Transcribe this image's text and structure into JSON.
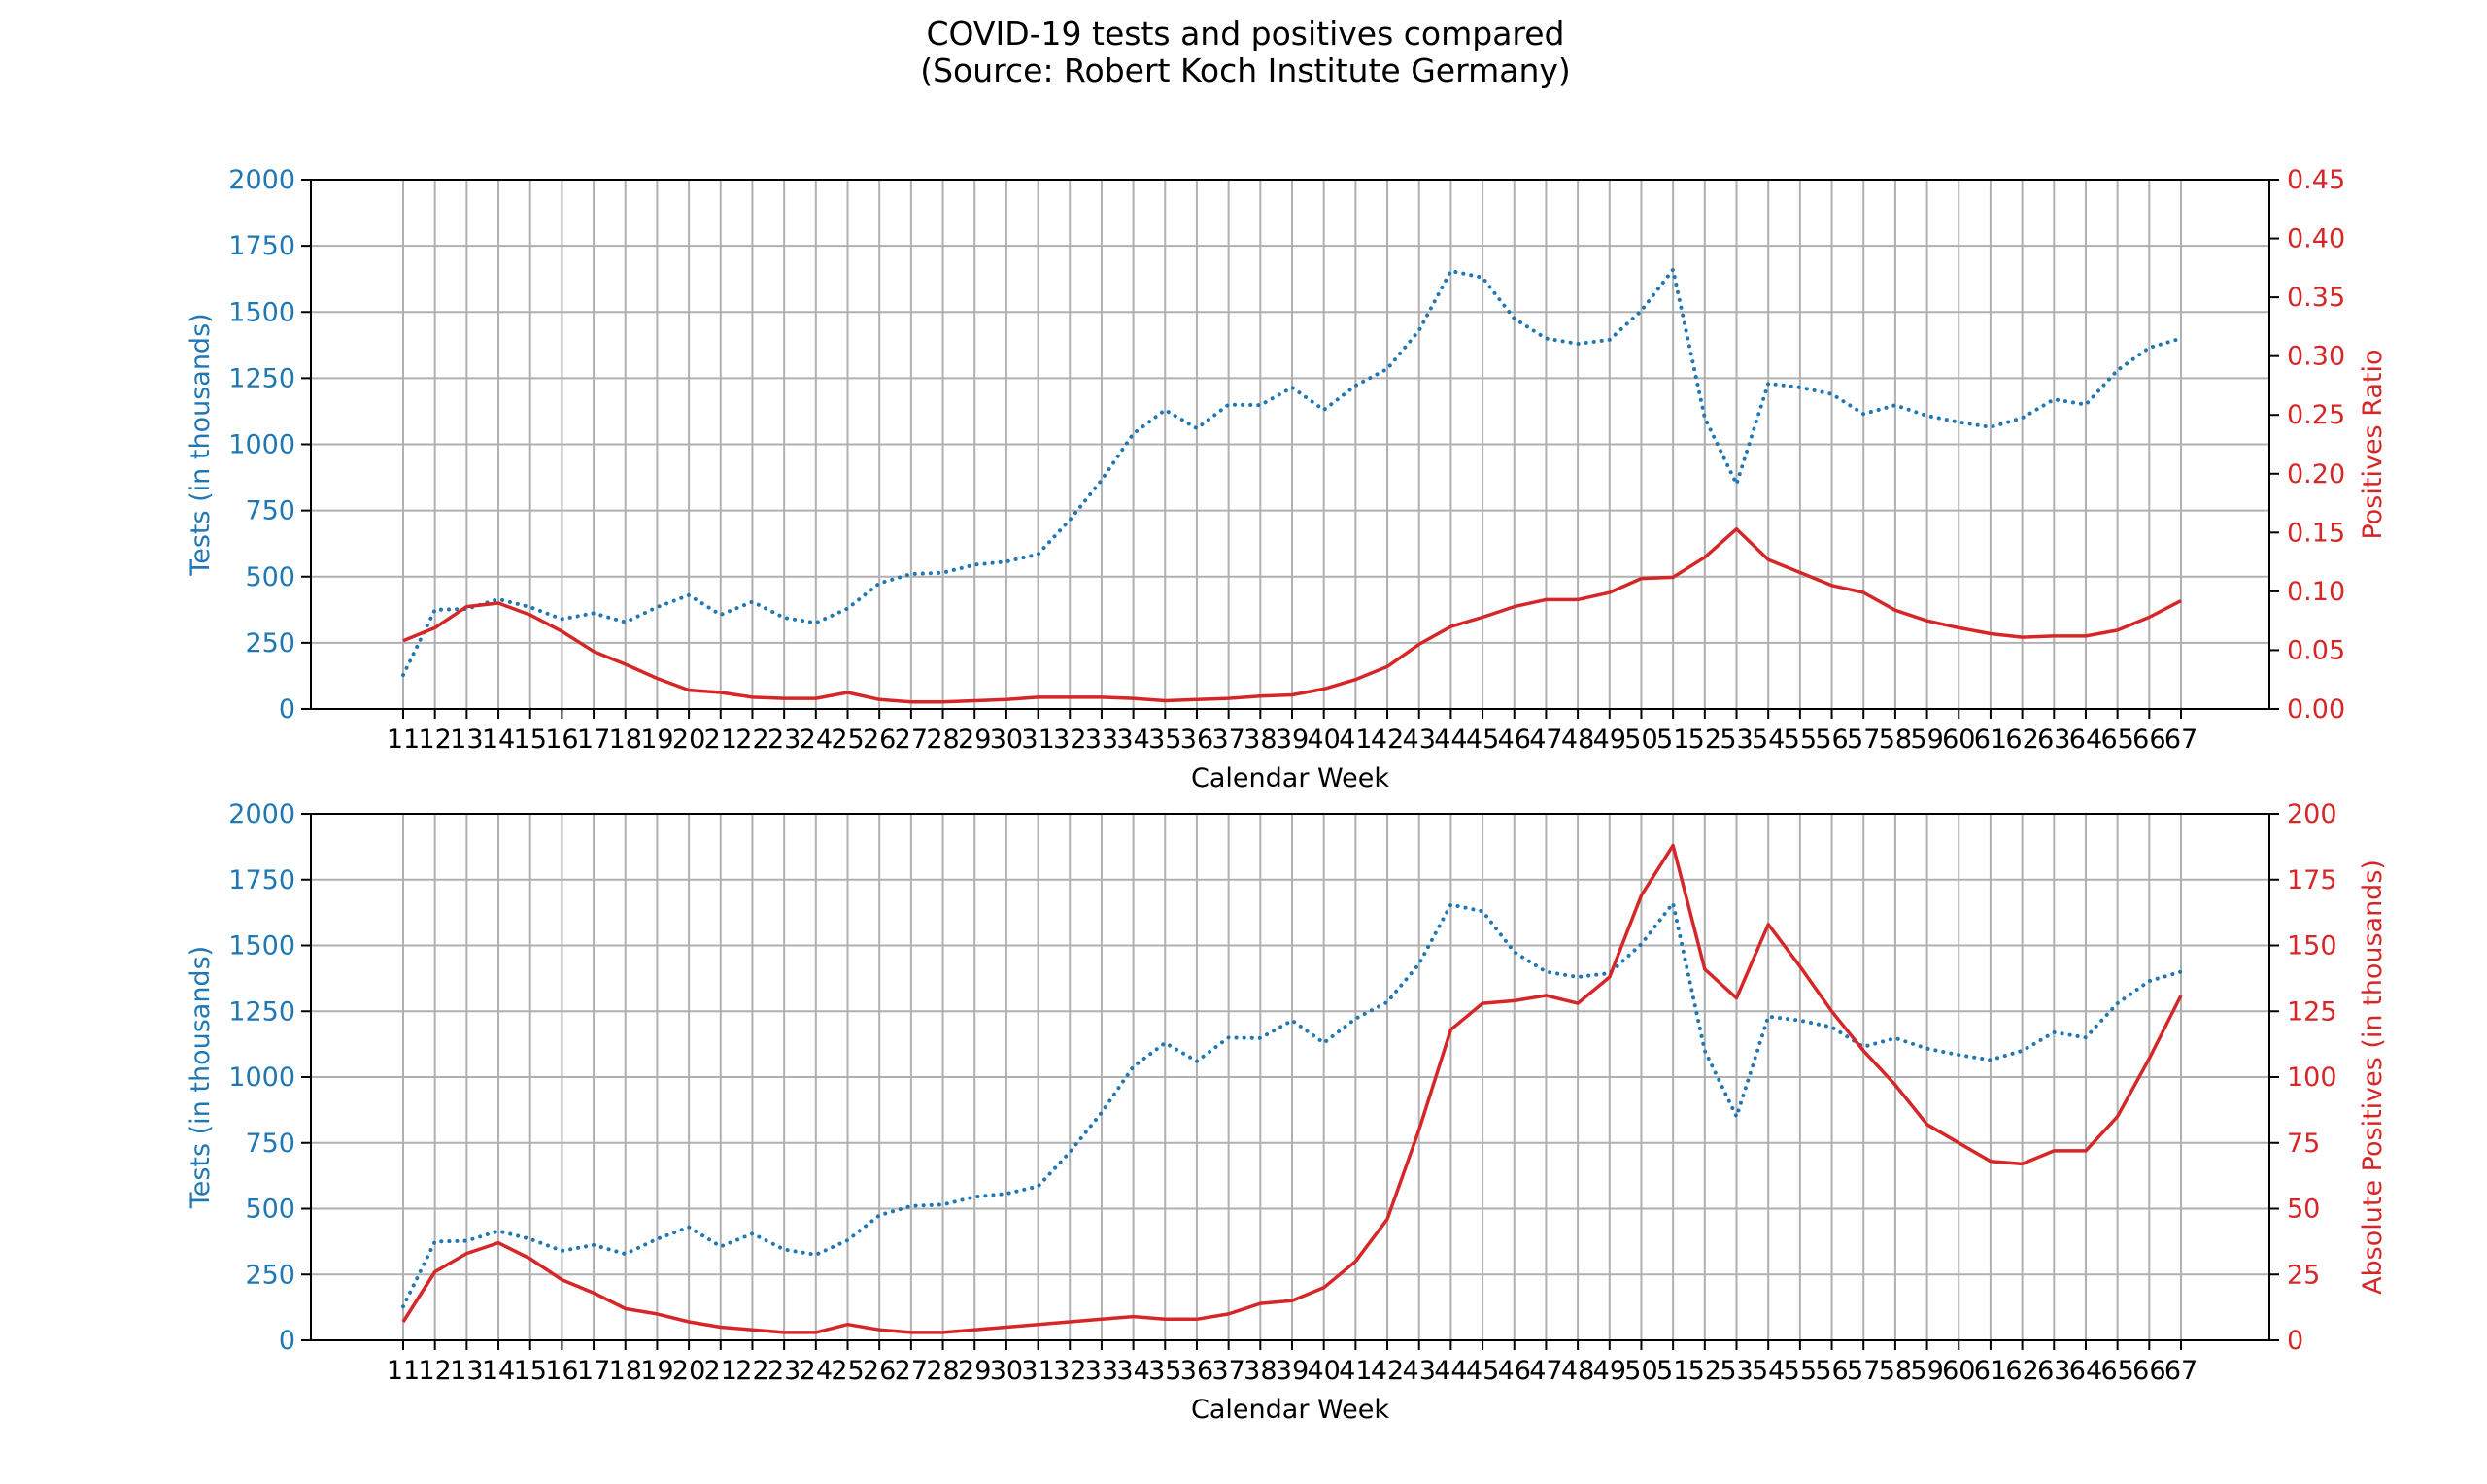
{
  "title_line1": "COVID-19 tests and positives compared",
  "title_line2": "(Source: Robert Koch Institute Germany)",
  "colors": {
    "tests": "#1f77b4",
    "positives": "#d62728",
    "grid": "#b0b0b0",
    "axis": "#000000"
  },
  "chart_data": [
    {
      "type": "line",
      "xlabel": "Calendar Week",
      "ylabel_left": "Tests (in thousands)",
      "ylabel_right": "Positives Ratio",
      "grid": true,
      "ylim_left": [
        0,
        2000
      ],
      "ylim_right": [
        0,
        0.45
      ],
      "yticks_left": [
        "0",
        "250",
        "500",
        "750",
        "1000",
        "1250",
        "1500",
        "1750",
        "2000"
      ],
      "yticks_right": [
        "0.00",
        "0.05",
        "0.10",
        "0.15",
        "0.20",
        "0.25",
        "0.30",
        "0.35",
        "0.40",
        "0.45"
      ],
      "x": [
        "11",
        "12",
        "13",
        "14",
        "15",
        "16",
        "17",
        "18",
        "19",
        "20",
        "21",
        "22",
        "23",
        "24",
        "25",
        "26",
        "27",
        "28",
        "29",
        "30",
        "31",
        "32",
        "33",
        "34",
        "35",
        "36",
        "37",
        "38",
        "39",
        "40",
        "41",
        "42",
        "43",
        "44",
        "45",
        "46",
        "47",
        "48",
        "49",
        "50",
        "51",
        "52",
        "53",
        "54",
        "55",
        "56",
        "57",
        "58",
        "59",
        "60",
        "61",
        "62",
        "63",
        "64",
        "65",
        "66",
        "67"
      ],
      "series": [
        {
          "axis": "left",
          "style": "dotted",
          "values": [
            128,
            375,
            378,
            415,
            385,
            340,
            362,
            328,
            385,
            430,
            356,
            405,
            345,
            325,
            380,
            475,
            510,
            515,
            545,
            557,
            585,
            715,
            865,
            1040,
            1130,
            1060,
            1150,
            1148,
            1215,
            1130,
            1222,
            1285,
            1430,
            1655,
            1630,
            1475,
            1400,
            1380,
            1395,
            1505,
            1660,
            1100,
            850,
            1230,
            1215,
            1190,
            1115,
            1148,
            1108,
            1084,
            1065,
            1100,
            1170,
            1150,
            1280,
            1365,
            1400
          ]
        },
        {
          "axis": "right",
          "style": "solid",
          "values": [
            0.058,
            0.069,
            0.087,
            0.09,
            0.08,
            0.066,
            0.049,
            0.038,
            0.026,
            0.016,
            0.014,
            0.01,
            0.009,
            0.009,
            0.014,
            0.008,
            0.006,
            0.006,
            0.007,
            0.008,
            0.01,
            0.01,
            0.01,
            0.009,
            0.007,
            0.008,
            0.009,
            0.011,
            0.012,
            0.017,
            0.025,
            0.036,
            0.055,
            0.07,
            0.078,
            0.087,
            0.093,
            0.093,
            0.099,
            0.111,
            0.112,
            0.129,
            0.153,
            0.127,
            0.116,
            0.105,
            0.099,
            0.084,
            0.075,
            0.069,
            0.064,
            0.061,
            0.062,
            0.062,
            0.067,
            0.078,
            0.092
          ]
        }
      ]
    },
    {
      "type": "line",
      "xlabel": "Calendar Week",
      "ylabel_left": "Tests (in thousands)",
      "ylabel_right": "Absolute Positives (in thousands)",
      "grid": true,
      "ylim_left": [
        0,
        2000
      ],
      "ylim_right": [
        0,
        200
      ],
      "yticks_left": [
        "0",
        "250",
        "500",
        "750",
        "1000",
        "1250",
        "1500",
        "1750",
        "2000"
      ],
      "yticks_right": [
        "0",
        "25",
        "50",
        "75",
        "100",
        "125",
        "150",
        "175",
        "200"
      ],
      "x": [
        "11",
        "12",
        "13",
        "14",
        "15",
        "16",
        "17",
        "18",
        "19",
        "20",
        "21",
        "22",
        "23",
        "24",
        "25",
        "26",
        "27",
        "28",
        "29",
        "30",
        "31",
        "32",
        "33",
        "34",
        "35",
        "36",
        "37",
        "38",
        "39",
        "40",
        "41",
        "42",
        "43",
        "44",
        "45",
        "46",
        "47",
        "48",
        "49",
        "50",
        "51",
        "52",
        "53",
        "54",
        "55",
        "56",
        "57",
        "58",
        "59",
        "60",
        "61",
        "62",
        "63",
        "64",
        "65",
        "66",
        "67"
      ],
      "series": [
        {
          "axis": "left",
          "style": "dotted",
          "values": [
            128,
            375,
            378,
            415,
            385,
            340,
            362,
            328,
            385,
            430,
            356,
            405,
            345,
            325,
            380,
            475,
            510,
            515,
            545,
            557,
            585,
            715,
            865,
            1040,
            1130,
            1060,
            1150,
            1148,
            1215,
            1130,
            1222,
            1285,
            1430,
            1655,
            1630,
            1475,
            1400,
            1380,
            1395,
            1505,
            1660,
            1100,
            850,
            1230,
            1215,
            1190,
            1115,
            1148,
            1108,
            1084,
            1065,
            1100,
            1170,
            1150,
            1280,
            1365,
            1400
          ]
        },
        {
          "axis": "right",
          "style": "solid",
          "values": [
            7,
            26,
            33,
            37,
            31,
            23,
            18,
            12,
            10,
            7,
            5,
            4,
            3,
            3,
            6,
            4,
            3,
            3,
            4,
            5,
            6,
            7,
            8,
            9,
            8,
            8,
            10,
            14,
            15,
            20,
            30,
            46,
            80,
            118,
            128,
            129,
            131,
            128,
            138,
            169,
            188,
            141,
            130,
            158,
            142,
            125,
            110,
            97,
            82,
            75,
            68,
            67,
            72,
            72,
            85,
            107,
            131
          ]
        }
      ]
    }
  ]
}
